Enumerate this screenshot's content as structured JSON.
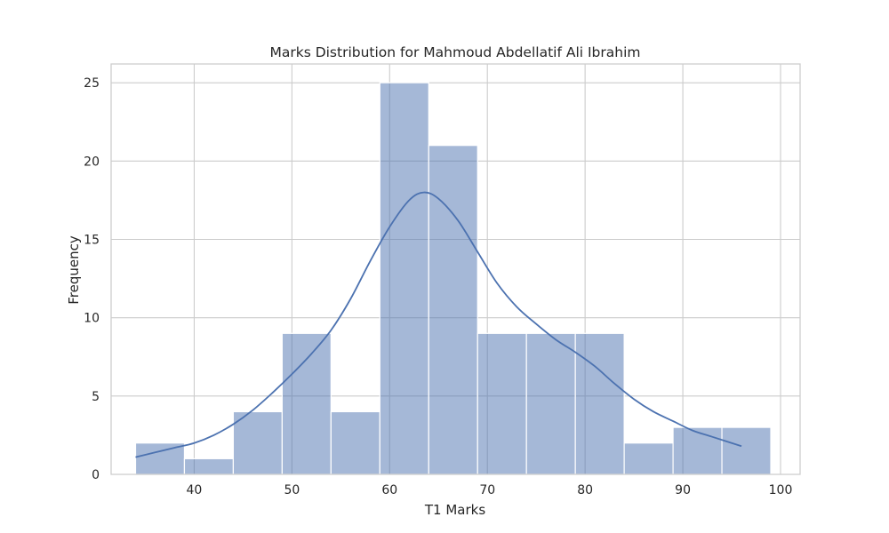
{
  "chart_data": {
    "type": "bar",
    "title": "Marks Distribution for Mahmoud Abdellatif Ali Ibrahim",
    "xlabel": "T1 Marks",
    "ylabel": "Frequency",
    "xlim": [
      31.5,
      102
    ],
    "ylim": [
      0,
      26.2
    ],
    "xticks": [
      40,
      50,
      60,
      70,
      80,
      90,
      100
    ],
    "yticks": [
      0,
      5,
      10,
      15,
      20,
      25
    ],
    "grid": true,
    "bar_color": "#4c72b0",
    "bar_alpha": 0.5,
    "line_color": "#4c72b0",
    "bins": [
      {
        "start": 34,
        "end": 39,
        "count": 2
      },
      {
        "start": 39,
        "end": 44,
        "count": 1
      },
      {
        "start": 44,
        "end": 49,
        "count": 4
      },
      {
        "start": 49,
        "end": 54,
        "count": 9
      },
      {
        "start": 54,
        "end": 59,
        "count": 4
      },
      {
        "start": 59,
        "end": 64,
        "count": 25
      },
      {
        "start": 64,
        "end": 69,
        "count": 21
      },
      {
        "start": 69,
        "end": 74,
        "count": 9
      },
      {
        "start": 74,
        "end": 79,
        "count": 9
      },
      {
        "start": 79,
        "end": 84,
        "count": 9
      },
      {
        "start": 84,
        "end": 89,
        "count": 2
      },
      {
        "start": 89,
        "end": 94,
        "count": 3
      },
      {
        "start": 94,
        "end": 99,
        "count": 3
      }
    ],
    "kde": {
      "x": [
        34,
        36,
        38,
        40,
        42,
        44,
        46,
        48,
        50,
        52,
        54,
        56,
        58,
        60,
        62,
        63.5,
        65,
        67,
        69,
        71,
        73,
        75,
        77,
        79,
        81,
        83,
        85,
        87,
        89,
        91,
        93,
        96
      ],
      "y": [
        1.1,
        1.4,
        1.7,
        2.0,
        2.5,
        3.2,
        4.1,
        5.2,
        6.4,
        7.7,
        9.2,
        11.2,
        13.6,
        15.8,
        17.5,
        18.0,
        17.6,
        16.2,
        14.2,
        12.2,
        10.7,
        9.6,
        8.6,
        7.8,
        6.9,
        5.8,
        4.8,
        4.0,
        3.4,
        2.8,
        2.4,
        1.8
      ]
    }
  }
}
